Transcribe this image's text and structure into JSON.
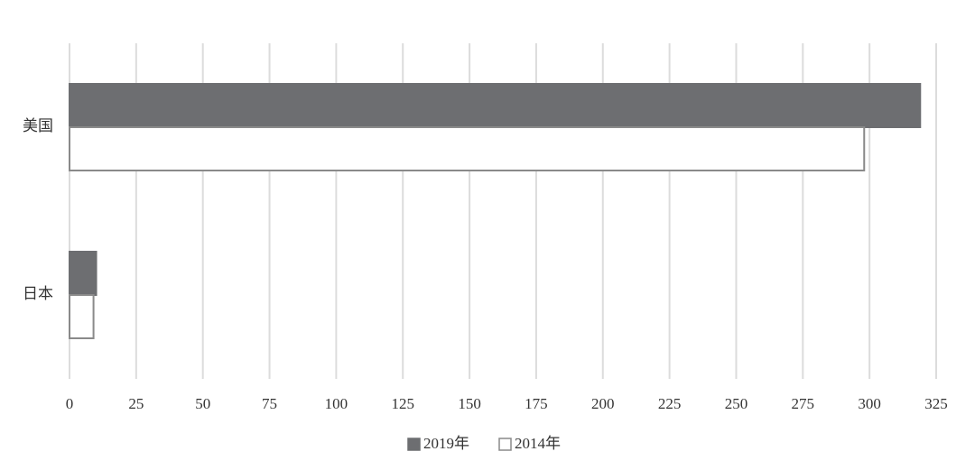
{
  "chart_data": {
    "type": "barh",
    "categories": [
      "美国",
      "日本"
    ],
    "series": [
      {
        "name": "2019年",
        "color": "#6d6e71",
        "edgecolor": "#6d6e71",
        "values": [
          319,
          10
        ]
      },
      {
        "name": "2014年",
        "color": "#ffffff",
        "edgecolor": "#8a8a8a",
        "values": [
          298,
          9
        ]
      }
    ],
    "xlim": [
      0,
      325
    ],
    "xticks": [
      0,
      25,
      50,
      75,
      100,
      125,
      150,
      175,
      200,
      225,
      250,
      275,
      300,
      325
    ],
    "grid": true,
    "legend": "bottom"
  }
}
